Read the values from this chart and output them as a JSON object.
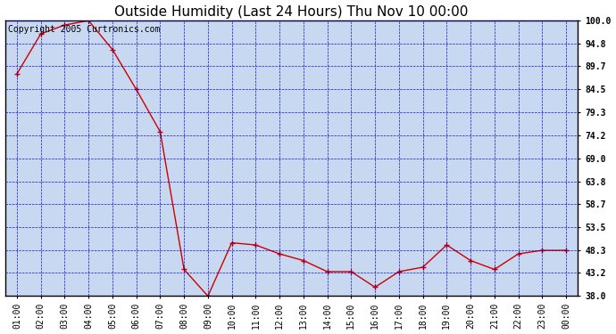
{
  "title": "Outside Humidity (Last 24 Hours) Thu Nov 10 00:00",
  "copyright": "Copyright 2005 Curtronics.com",
  "x_labels": [
    "01:00",
    "02:00",
    "03:00",
    "04:00",
    "05:00",
    "06:00",
    "07:00",
    "08:00",
    "09:00",
    "10:00",
    "11:00",
    "12:00",
    "13:00",
    "14:00",
    "15:00",
    "16:00",
    "17:00",
    "18:00",
    "19:00",
    "20:00",
    "21:00",
    "22:00",
    "23:00",
    "00:00"
  ],
  "x_values": [
    1,
    2,
    3,
    4,
    5,
    6,
    7,
    8,
    9,
    10,
    11,
    12,
    13,
    14,
    15,
    16,
    17,
    18,
    19,
    20,
    21,
    22,
    23,
    24
  ],
  "y_values": [
    88.0,
    97.0,
    99.0,
    100.0,
    93.5,
    84.5,
    75.0,
    44.0,
    38.0,
    50.0,
    49.5,
    47.5,
    46.0,
    43.5,
    43.5,
    40.0,
    43.5,
    44.5,
    49.5,
    46.0,
    44.0,
    47.5,
    48.3,
    48.3
  ],
  "ylim": [
    38.0,
    100.0
  ],
  "yticks": [
    38.0,
    43.2,
    48.3,
    53.5,
    58.7,
    63.8,
    69.0,
    74.2,
    79.3,
    84.5,
    89.7,
    94.8,
    100.0
  ],
  "ytick_labels": [
    "38.0",
    "43.2",
    "48.3",
    "53.5",
    "58.7",
    "63.8",
    "69.0",
    "74.2",
    "79.3",
    "84.5",
    "89.7",
    "94.8",
    "100.0"
  ],
  "line_color": "#cc0000",
  "marker_color": "#cc0000",
  "plot_bg": "#c8d8f0",
  "fig_bg": "#ffffff",
  "border_color": "#000000",
  "grid_color": "#0000cc",
  "tick_label_color": "#000000",
  "title_fontsize": 11,
  "tick_fontsize": 7,
  "copyright_fontsize": 7
}
